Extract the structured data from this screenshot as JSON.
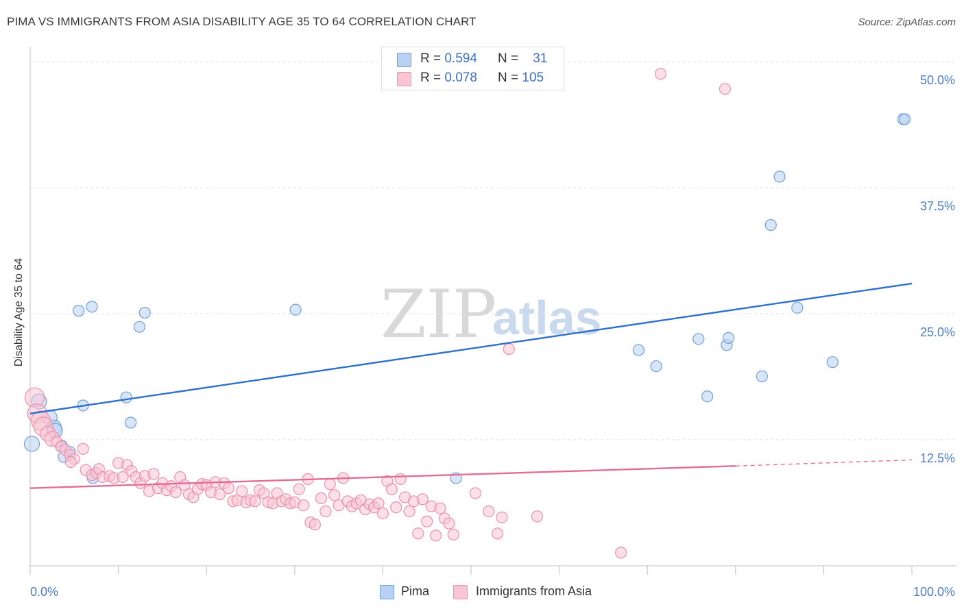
{
  "header": {
    "title": "PIMA VS IMMIGRANTS FROM ASIA DISABILITY AGE 35 TO 64 CORRELATION CHART",
    "source": "Source: ZipAtlas.com"
  },
  "legend": {
    "pima": {
      "r_label": "R =",
      "r_value": "0.594",
      "n_label": "N =",
      "n_value": "31"
    },
    "asia": {
      "r_label": "R =",
      "r_value": "0.078",
      "n_label": "N =",
      "n_value": "105"
    }
  },
  "colors": {
    "pima_fill": "#b9d2f3",
    "pima_stroke": "#6f9fdc",
    "pima_line": "#2f6fce",
    "asia_fill": "#f9c5d4",
    "asia_stroke": "#ec8fad",
    "asia_line": "#e36b95",
    "tick_label": "#4a7bc8",
    "grid": "#e1e1e1"
  },
  "watermark": {
    "zip": "ZIP",
    "atlas": "atlas"
  },
  "chart_data": {
    "type": "scatter",
    "title": "PIMA VS IMMIGRANTS FROM ASIA DISABILITY AGE 35 TO 64 CORRELATION CHART",
    "xlabel": "",
    "ylabel": "Disability Age 35 to 64",
    "xlim": [
      0,
      100
    ],
    "ylim": [
      0,
      51.5
    ],
    "x_tick_labels": [
      "0.0%",
      "100.0%"
    ],
    "y_ticks": [
      12.5,
      25.0,
      37.5,
      50.0
    ],
    "y_tick_labels": [
      "12.5%",
      "25.0%",
      "37.5%",
      "50.0%"
    ],
    "grid": true,
    "legend_position": "top-center",
    "series": [
      {
        "name": "Pima",
        "points": [
          [
            0.2,
            12.1
          ],
          [
            1.0,
            16.3
          ],
          [
            2.2,
            14.7
          ],
          [
            2.7,
            13.7
          ],
          [
            2.8,
            13.4
          ],
          [
            3.6,
            11.9
          ],
          [
            3.8,
            10.8
          ],
          [
            4.5,
            11.3
          ],
          [
            7.0,
            25.7
          ],
          [
            5.5,
            25.3
          ],
          [
            6.0,
            15.9
          ],
          [
            7.1,
            8.7
          ],
          [
            10.9,
            16.7
          ],
          [
            11.4,
            14.2
          ],
          [
            12.4,
            23.7
          ],
          [
            13.0,
            25.1
          ],
          [
            30.1,
            25.4
          ],
          [
            48.3,
            8.7
          ],
          [
            69.0,
            21.4
          ],
          [
            71.0,
            19.8
          ],
          [
            75.8,
            22.5
          ],
          [
            76.8,
            16.8
          ],
          [
            79.0,
            21.9
          ],
          [
            79.2,
            22.6
          ],
          [
            83.0,
            18.8
          ],
          [
            85.0,
            38.6
          ],
          [
            84.0,
            33.8
          ],
          [
            87.0,
            25.6
          ],
          [
            91.0,
            20.2
          ],
          [
            99.0,
            44.3
          ],
          [
            99.2,
            44.3
          ]
        ],
        "trend": {
          "x": [
            0,
            100
          ],
          "y": [
            15.1,
            28.0
          ]
        }
      },
      {
        "name": "Immigrants from Asia",
        "points": [
          [
            0.5,
            16.7
          ],
          [
            0.8,
            15.1
          ],
          [
            1.2,
            14.4
          ],
          [
            1.5,
            13.8
          ],
          [
            2.0,
            13.1
          ],
          [
            2.5,
            12.6
          ],
          [
            3.0,
            12.3
          ],
          [
            3.5,
            11.8
          ],
          [
            4.0,
            11.5
          ],
          [
            4.5,
            11.0
          ],
          [
            5.0,
            10.6
          ],
          [
            4.6,
            10.3
          ],
          [
            6.0,
            11.6
          ],
          [
            6.3,
            9.5
          ],
          [
            7.0,
            9.0
          ],
          [
            7.5,
            9.2
          ],
          [
            7.8,
            9.6
          ],
          [
            8.2,
            8.8
          ],
          [
            9.0,
            8.9
          ],
          [
            9.5,
            8.7
          ],
          [
            10.0,
            10.2
          ],
          [
            10.5,
            8.8
          ],
          [
            11.0,
            10.0
          ],
          [
            11.5,
            9.4
          ],
          [
            12.0,
            8.8
          ],
          [
            12.5,
            8.2
          ],
          [
            13.0,
            8.9
          ],
          [
            13.5,
            7.4
          ],
          [
            14.0,
            9.1
          ],
          [
            14.5,
            7.7
          ],
          [
            15.0,
            8.2
          ],
          [
            15.5,
            7.5
          ],
          [
            16.0,
            7.9
          ],
          [
            16.5,
            7.3
          ],
          [
            17.0,
            8.8
          ],
          [
            17.5,
            8.0
          ],
          [
            18.0,
            7.1
          ],
          [
            18.5,
            6.8
          ],
          [
            19.0,
            7.6
          ],
          [
            19.5,
            8.1
          ],
          [
            20.0,
            8.0
          ],
          [
            20.5,
            7.3
          ],
          [
            21.0,
            8.3
          ],
          [
            21.5,
            7.1
          ],
          [
            22.0,
            8.2
          ],
          [
            22.5,
            7.7
          ],
          [
            23.0,
            6.4
          ],
          [
            23.5,
            6.5
          ],
          [
            24.0,
            7.4
          ],
          [
            24.5,
            6.3
          ],
          [
            25.0,
            6.5
          ],
          [
            25.5,
            6.4
          ],
          [
            26.0,
            7.5
          ],
          [
            26.5,
            7.2
          ],
          [
            27.0,
            6.3
          ],
          [
            27.5,
            6.2
          ],
          [
            28.0,
            7.2
          ],
          [
            28.5,
            6.4
          ],
          [
            29.0,
            6.6
          ],
          [
            29.5,
            6.2
          ],
          [
            30.0,
            6.3
          ],
          [
            30.5,
            7.6
          ],
          [
            31.0,
            6.0
          ],
          [
            31.5,
            8.6
          ],
          [
            31.8,
            4.3
          ],
          [
            32.3,
            4.1
          ],
          [
            33.0,
            6.7
          ],
          [
            33.5,
            5.4
          ],
          [
            34.0,
            8.1
          ],
          [
            34.5,
            7.0
          ],
          [
            35.0,
            6.0
          ],
          [
            35.5,
            8.7
          ],
          [
            36.0,
            6.4
          ],
          [
            36.5,
            5.9
          ],
          [
            37.0,
            6.2
          ],
          [
            37.5,
            6.5
          ],
          [
            38.0,
            5.6
          ],
          [
            38.5,
            6.1
          ],
          [
            39.0,
            5.8
          ],
          [
            39.5,
            6.2
          ],
          [
            40.0,
            5.2
          ],
          [
            40.5,
            8.4
          ],
          [
            41.0,
            7.6
          ],
          [
            41.5,
            5.8
          ],
          [
            42.0,
            8.6
          ],
          [
            42.5,
            6.8
          ],
          [
            43.0,
            5.4
          ],
          [
            43.5,
            6.4
          ],
          [
            44.0,
            3.2
          ],
          [
            44.5,
            6.6
          ],
          [
            45.0,
            4.4
          ],
          [
            45.5,
            5.9
          ],
          [
            46.0,
            3.0
          ],
          [
            46.5,
            5.7
          ],
          [
            47.0,
            4.7
          ],
          [
            47.5,
            4.2
          ],
          [
            48.0,
            3.1
          ],
          [
            50.5,
            7.2
          ],
          [
            52.0,
            5.4
          ],
          [
            53.0,
            3.2
          ],
          [
            53.5,
            4.8
          ],
          [
            54.3,
            21.5
          ],
          [
            57.5,
            4.9
          ],
          [
            67.0,
            1.3
          ],
          [
            71.5,
            48.8
          ],
          [
            78.8,
            47.3
          ]
        ],
        "trend": {
          "x": [
            0,
            80
          ],
          "y": [
            7.7,
            9.9
          ]
        },
        "trend_dashed_extension": {
          "x": [
            80,
            100
          ],
          "y": [
            9.9,
            10.5
          ]
        }
      }
    ]
  },
  "bottom_legend": {
    "pima_label": "Pima",
    "asia_label": "Immigrants from Asia"
  }
}
